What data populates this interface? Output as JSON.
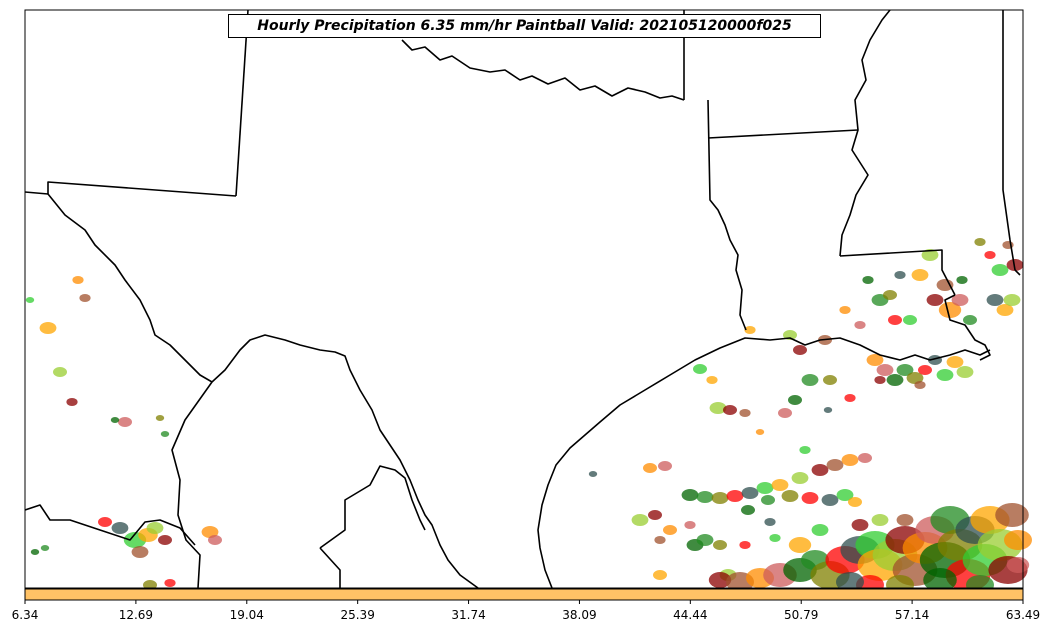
{
  "title": "Hourly Precipitation 6.35 mm/hr Paintball Valid: 202105120000f025",
  "colorbar": {
    "color": "#FFC266",
    "ticks": [
      "6.34",
      "12.69",
      "19.04",
      "25.39",
      "31.74",
      "38.09",
      "44.44",
      "50.79",
      "57.14",
      "63.49"
    ]
  },
  "paintball_colors": [
    "#8B0000",
    "#FF0000",
    "#FF8C00",
    "#32CD32",
    "#006400",
    "#9ACD32",
    "#808000",
    "#A0522D",
    "#2F4F4F",
    "#CD5C5C",
    "#FFA500",
    "#228B22"
  ]
}
